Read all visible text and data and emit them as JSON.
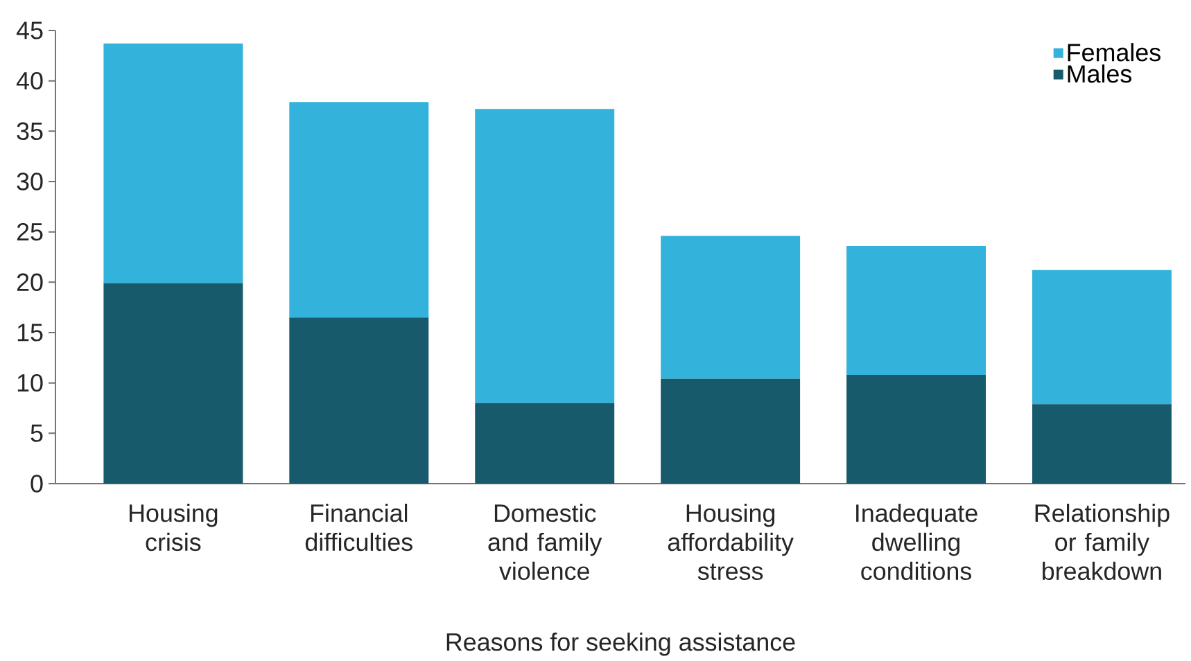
{
  "chart_data": {
    "type": "bar",
    "stacked": true,
    "xlabel": "Reasons for seeking assistance",
    "categories": [
      "Housing crisis",
      "Financial difficulties",
      "Domestic and family violence",
      "Housing affordability stress",
      "Inadequate dwelling conditions",
      "Relationship or family breakdown"
    ],
    "series": [
      {
        "name": "Males",
        "color": "#175a6c",
        "values": [
          19.9,
          16.5,
          8.0,
          10.4,
          10.8,
          7.9
        ]
      },
      {
        "name": "Females",
        "color": "#33b2db",
        "values": [
          23.8,
          21.4,
          29.2,
          14.2,
          12.8,
          13.3
        ]
      }
    ],
    "ylim": [
      0,
      45
    ],
    "yticks": [
      0,
      5,
      10,
      15,
      20,
      25,
      30,
      35,
      40,
      45
    ],
    "grid": false,
    "legend": "top right"
  }
}
